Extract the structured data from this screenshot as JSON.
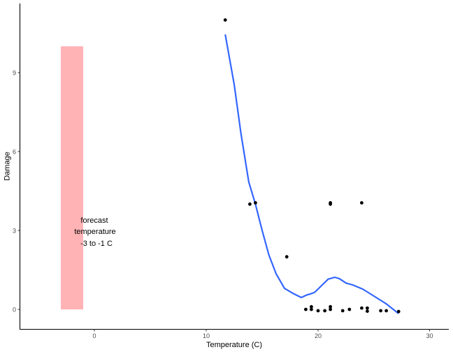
{
  "chart_data": {
    "type": "scatter",
    "title": "",
    "xlabel": "Temperature (C)",
    "ylabel": "Damage",
    "xlim": [
      -6.8,
      31.8
    ],
    "ylim": [
      -0.75,
      11.6
    ],
    "x_ticks": [
      0,
      10,
      20,
      30
    ],
    "y_ticks": [
      0,
      3,
      6,
      9
    ],
    "grid": false,
    "legend": null,
    "colors": {
      "points": "#000000",
      "smooth_line": "#3366ff",
      "forecast_band": "#ffb3b5",
      "axis": "#000000",
      "tick_text": "#4d4d4d"
    },
    "points": [
      {
        "x": 11.7,
        "y": 11
      },
      {
        "x": 13.9,
        "y": 4
      },
      {
        "x": 14.4,
        "y": 4.05
      },
      {
        "x": 17.2,
        "y": 2
      },
      {
        "x": 21.1,
        "y": 4
      },
      {
        "x": 21.1,
        "y": 4.05
      },
      {
        "x": 23.9,
        "y": 4.05
      },
      {
        "x": 18.9,
        "y": 0
      },
      {
        "x": 19.4,
        "y": 0
      },
      {
        "x": 19.4,
        "y": 0.1
      },
      {
        "x": 20.0,
        "y": -0.05
      },
      {
        "x": 20.6,
        "y": -0.05
      },
      {
        "x": 21.1,
        "y": 0
      },
      {
        "x": 21.1,
        "y": 0.1
      },
      {
        "x": 22.2,
        "y": -0.05
      },
      {
        "x": 22.8,
        "y": 0
      },
      {
        "x": 23.9,
        "y": 0.05
      },
      {
        "x": 24.4,
        "y": 0.05
      },
      {
        "x": 24.4,
        "y": -0.07
      },
      {
        "x": 25.6,
        "y": -0.05
      },
      {
        "x": 26.1,
        "y": -0.05
      },
      {
        "x": 27.2,
        "y": -0.08
      }
    ],
    "smooth_line": {
      "method": "loess",
      "x": [
        11.7,
        12.5,
        13.1,
        13.8,
        14.4,
        15.0,
        15.6,
        16.25,
        17.0,
        17.8,
        18.5,
        19.0,
        19.4,
        19.7,
        20.3,
        20.9,
        21.5,
        21.9,
        22.5,
        23.1,
        24.0,
        24.9,
        26.1,
        27.2
      ],
      "y": [
        10.45,
        8.55,
        6.7,
        4.85,
        4.0,
        3.0,
        2.07,
        1.35,
        0.8,
        0.6,
        0.45,
        0.55,
        0.6,
        0.65,
        0.9,
        1.15,
        1.22,
        1.17,
        1.0,
        0.93,
        0.77,
        0.53,
        0.21,
        -0.16
      ]
    },
    "forecast_band": {
      "xmin": -3,
      "xmax": -1,
      "ymin": 0,
      "ymax": 10
    },
    "annotations": [
      {
        "text_lines": [
          "forecast",
          "temperature",
          "-3 to -1 C"
        ],
        "x": -1,
        "y": 3
      }
    ]
  },
  "labels": {
    "x_axis_title": "Temperature (C)",
    "y_axis_title": "Damage",
    "annotation_line1": "forecast",
    "annotation_line2": "temperature",
    "annotation_line3": "-3 to -1 C",
    "x_tick_0": "0",
    "x_tick_10": "10",
    "x_tick_20": "20",
    "x_tick_30": "30",
    "y_tick_0": "0",
    "y_tick_3": "3",
    "y_tick_6": "6",
    "y_tick_9": "9"
  }
}
